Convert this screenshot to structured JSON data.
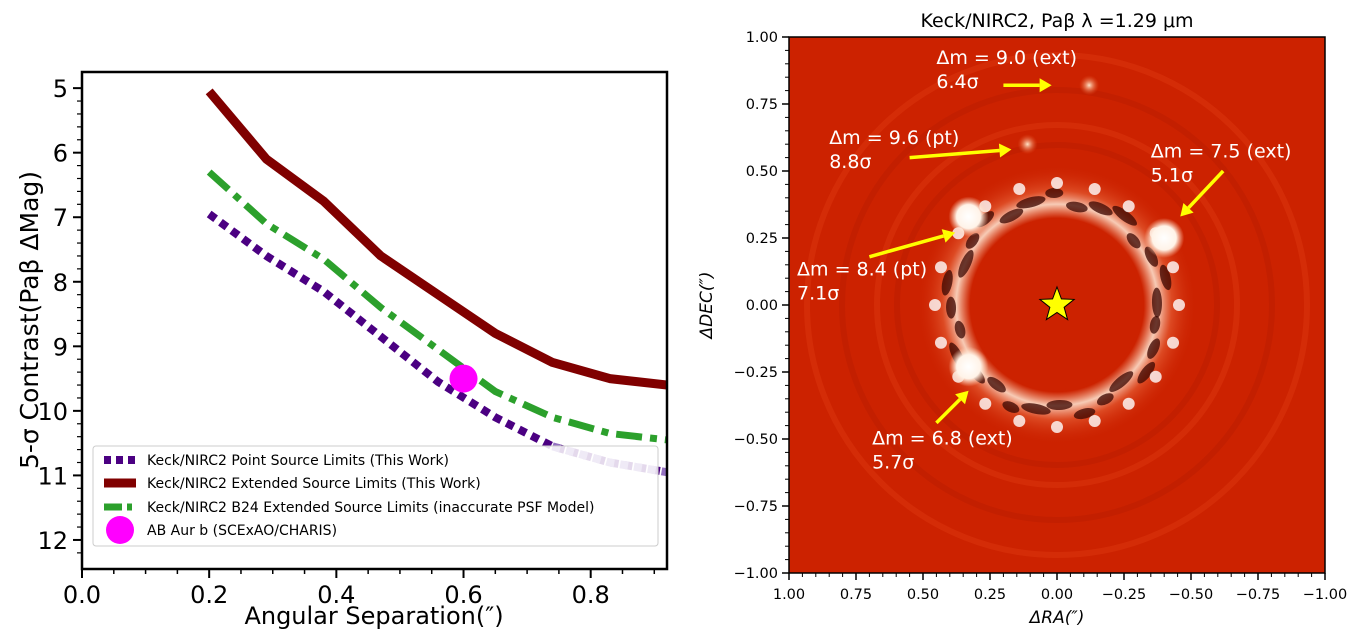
{
  "chart_data": [
    {
      "type": "line",
      "xlabel": "Angular Separation(″)",
      "ylabel": "5-σ Contrast(Paβ ΔMag)",
      "xlim": [
        0.0,
        0.92
      ],
      "ylim": [
        12.45,
        4.75
      ],
      "y_inverted": true,
      "xticks": [
        {
          "v": 0.0,
          "label": "0.0"
        },
        {
          "v": 0.2,
          "label": "0.2"
        },
        {
          "v": 0.4,
          "label": "0.4"
        },
        {
          "v": 0.6,
          "label": "0.6"
        },
        {
          "v": 0.8,
          "label": "0.8"
        }
      ],
      "yticks": [
        {
          "v": 5,
          "label": "5"
        },
        {
          "v": 6,
          "label": "6"
        },
        {
          "v": 7,
          "label": "7"
        },
        {
          "v": 8,
          "label": "8"
        },
        {
          "v": 9,
          "label": "9"
        },
        {
          "v": 10,
          "label": "10"
        },
        {
          "v": 11,
          "label": "11"
        },
        {
          "v": 12,
          "label": "12"
        }
      ],
      "legend_position": "lower-right",
      "series": [
        {
          "name": "Keck/NIRC2 Point Source Limits (This Work)",
          "style": "dotted",
          "color": "#4b0082",
          "fade_color": "#9370c0",
          "x": [
            0.2,
            0.29,
            0.38,
            0.47,
            0.56,
            0.65,
            0.74,
            0.83,
            0.92
          ],
          "y": [
            6.95,
            7.6,
            8.15,
            8.85,
            9.55,
            10.1,
            10.55,
            10.8,
            10.95
          ]
        },
        {
          "name": "Keck/NIRC2 Extended Source Limits (This Work)",
          "style": "solid",
          "color": "#800000",
          "x": [
            0.2,
            0.29,
            0.38,
            0.47,
            0.56,
            0.65,
            0.74,
            0.83,
            0.92
          ],
          "y": [
            5.05,
            6.1,
            6.75,
            7.6,
            8.2,
            8.8,
            9.25,
            9.5,
            9.6
          ]
        },
        {
          "name": "Keck/NIRC2 B24 Extended Source Limits (inaccurate PSF Model)",
          "style": "dashdot",
          "color": "#2ca02c",
          "x": [
            0.2,
            0.29,
            0.38,
            0.47,
            0.56,
            0.65,
            0.74,
            0.83,
            0.92
          ],
          "y": [
            6.3,
            7.1,
            7.65,
            8.4,
            9.05,
            9.7,
            10.1,
            10.35,
            10.45
          ]
        },
        {
          "name": "AB Aur b (SCExAO/CHARIS)",
          "style": "marker",
          "color": "#ff00ff",
          "x": [
            0.6
          ],
          "y": [
            9.5
          ]
        }
      ]
    },
    {
      "type": "heatmap",
      "title": "Keck/NIRC2, Paβ λ =1.29 μm",
      "xlabel": "ΔRA(″)",
      "ylabel": "ΔDEC(″)",
      "xlim": [
        1.0,
        -1.0
      ],
      "ylim": [
        -1.0,
        1.0
      ],
      "xticks": [
        {
          "v": 1.0,
          "label": "1.00"
        },
        {
          "v": 0.75,
          "label": "0.75"
        },
        {
          "v": 0.5,
          "label": "0.50"
        },
        {
          "v": 0.25,
          "label": "0.25"
        },
        {
          "v": 0.0,
          "label": "0.00"
        },
        {
          "v": -0.25,
          "label": "−0.25"
        },
        {
          "v": -0.5,
          "label": "−0.50"
        },
        {
          "v": -0.75,
          "label": "−0.75"
        },
        {
          "v": -1.0,
          "label": "−1.00"
        }
      ],
      "yticks": [
        {
          "v": 1.0,
          "label": "1.00"
        },
        {
          "v": 0.75,
          "label": "0.75"
        },
        {
          "v": 0.5,
          "label": "0.50"
        },
        {
          "v": 0.25,
          "label": "0.25"
        },
        {
          "v": 0.0,
          "label": "0.00"
        },
        {
          "v": -0.25,
          "label": "−0.25"
        },
        {
          "v": -0.5,
          "label": "−0.50"
        },
        {
          "v": -0.75,
          "label": "−0.75"
        },
        {
          "v": -1.0,
          "label": "−1.00"
        }
      ],
      "colormap": {
        "background": "#cc2200",
        "mask": "#cc2200",
        "bright": "#ffffff",
        "dark": "#2a0400"
      },
      "star": {
        "ra": 0.0,
        "dec": 0.0,
        "color": "#ffff00"
      },
      "sources": [
        {
          "ra": 0.33,
          "dec": 0.33,
          "kind": "bright"
        },
        {
          "ra": -0.4,
          "dec": 0.25,
          "kind": "bright"
        },
        {
          "ra": 0.33,
          "dec": -0.23,
          "kind": "bright"
        },
        {
          "ra": 0.11,
          "dec": 0.6,
          "kind": "faint"
        },
        {
          "ra": -0.12,
          "dec": 0.82,
          "kind": "faint"
        }
      ],
      "annotations": [
        {
          "lines": [
            "Δm = 9.0 (ext)",
            "6.4σ"
          ],
          "tx": 0.45,
          "ty": 0.9,
          "arrow_from": [
            0.2,
            0.82
          ],
          "arrow_to": [
            0.02,
            0.82
          ]
        },
        {
          "lines": [
            "Δm = 9.6 (pt)",
            "8.8σ"
          ],
          "tx": 0.85,
          "ty": 0.6,
          "arrow_from": [
            0.55,
            0.55
          ],
          "arrow_to": [
            0.17,
            0.58
          ]
        },
        {
          "lines": [
            "Δm = 7.5 (ext)",
            "5.1σ"
          ],
          "tx": -0.35,
          "ty": 0.55,
          "arrow_from": [
            -0.62,
            0.5
          ],
          "arrow_to": [
            -0.46,
            0.33
          ]
        },
        {
          "lines": [
            "Δm = 8.4 (pt)",
            "7.1σ"
          ],
          "tx": 0.97,
          "ty": 0.11,
          "arrow_from": [
            0.7,
            0.18
          ],
          "arrow_to": [
            0.38,
            0.27
          ]
        },
        {
          "lines": [
            "Δm = 6.8 (ext)",
            "5.7σ"
          ],
          "tx": 0.69,
          "ty": -0.52,
          "arrow_from": [
            0.45,
            -0.44
          ],
          "arrow_to": [
            0.33,
            -0.32
          ]
        }
      ]
    }
  ]
}
